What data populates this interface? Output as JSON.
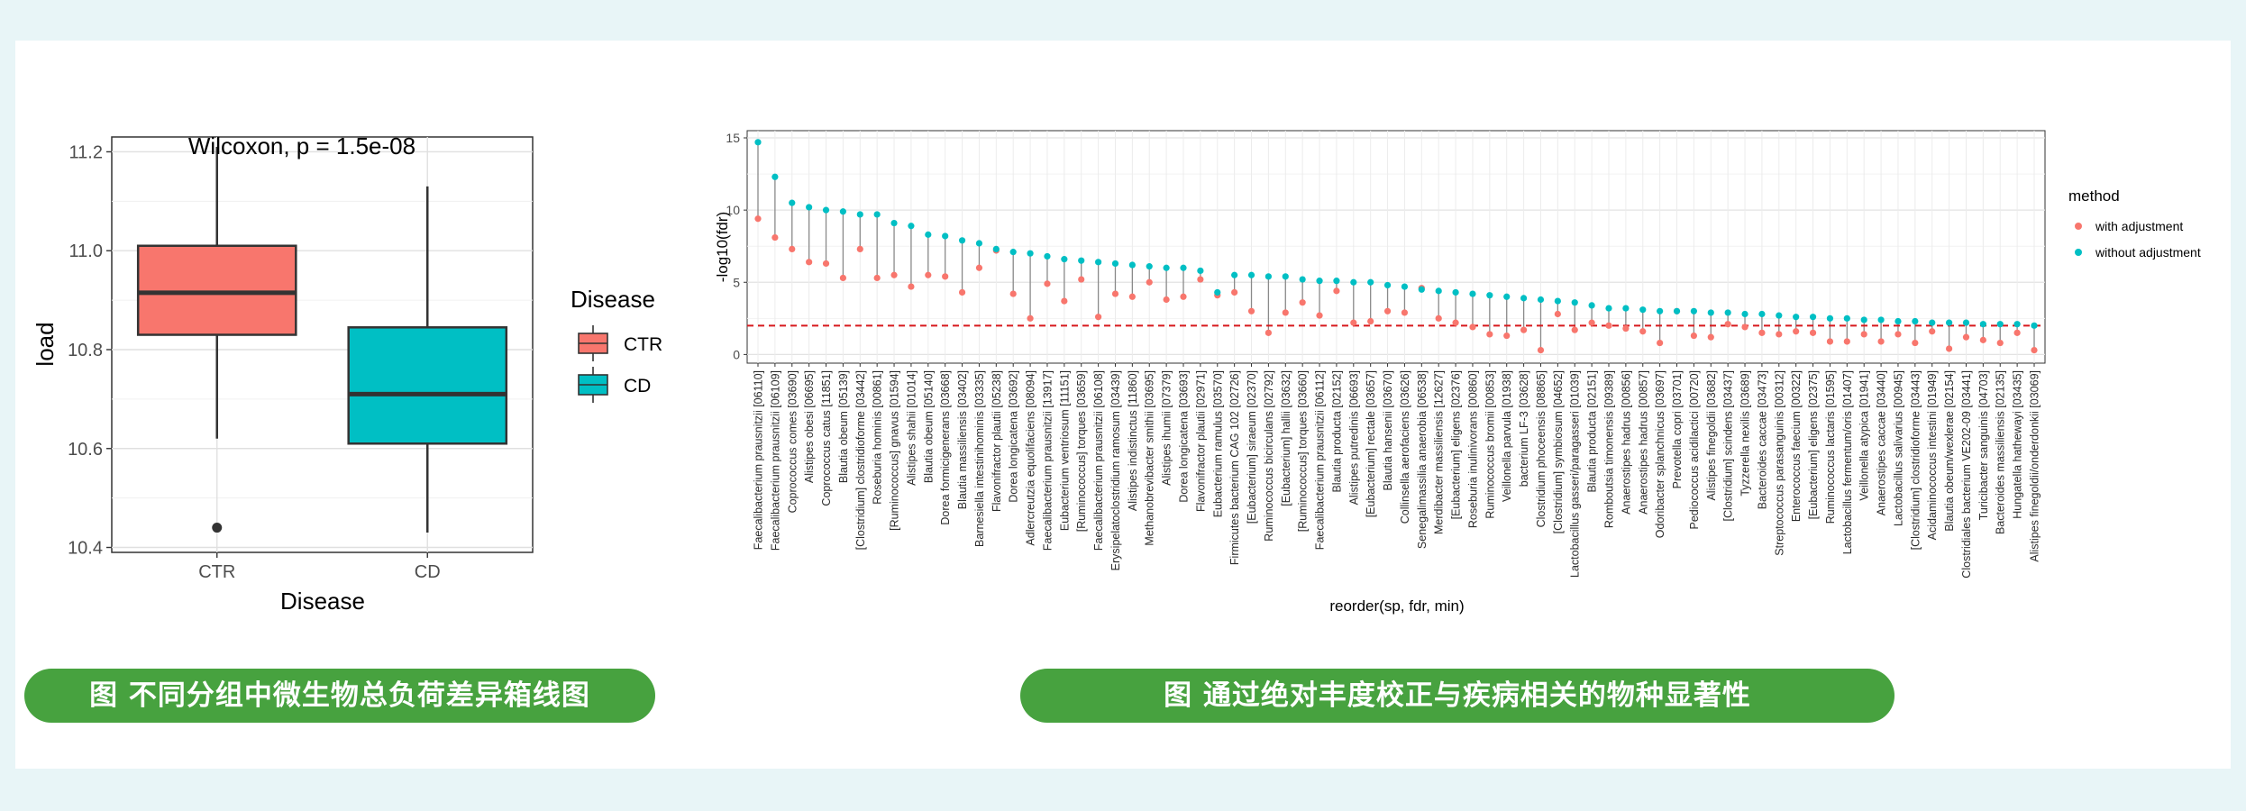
{
  "captions": {
    "left": "图 不同分组中微生物总负荷差异箱线图",
    "right": "图 通过绝对丰度校正与疾病相关的物种显著性"
  },
  "colors": {
    "ctr": "#f8766d",
    "cd": "#00bfc4",
    "caption_bg": "#47a23f",
    "threshold": "#d7191c"
  },
  "chart_data": [
    {
      "type": "box",
      "title": "Wilcoxon, p = 1.5e-08",
      "xlabel": "Disease",
      "ylabel": "load",
      "ylim": [
        10.39,
        11.23
      ],
      "yticks": [
        "10.4",
        "10.6",
        "10.8",
        "11.0",
        "11.2"
      ],
      "legend": {
        "title": "Disease",
        "position": "right"
      },
      "grid": true,
      "groups": [
        {
          "name": "CTR",
          "min": 10.62,
          "q1": 10.83,
          "median": 10.915,
          "q3": 11.01,
          "max": 11.21,
          "outliers": [
            10.44
          ]
        },
        {
          "name": "CD",
          "min": 10.43,
          "q1": 10.61,
          "median": 10.71,
          "q3": 10.845,
          "max": 11.13,
          "outliers": []
        }
      ]
    },
    {
      "type": "scatter",
      "xlabel": "reorder(sp, fdr, min)",
      "ylabel": "-log10(fdr)",
      "ylim": [
        -0.6,
        15.5
      ],
      "yticks": [
        "0",
        "5",
        "10",
        "15"
      ],
      "hline": 2,
      "grid": true,
      "legend": {
        "title": "method",
        "position": "right"
      },
      "series": [
        {
          "name": "with adjustment",
          "color": "#f8766d"
        },
        {
          "name": "without adjustment",
          "color": "#00bfc4"
        }
      ],
      "categories": [
        "Faecalibacterium prausnitzii [06110]",
        "Faecalibacterium prausnitzii [06109]",
        "Coprococcus comes [03690]",
        "Alistipes obesi [06695]",
        "Coprococcus catus [11851]",
        "Blautia obeum [05139]",
        "[Clostridium] clostridioforme [03442]",
        "Roseburia hominis [00861]",
        "[Ruminococcus] gnavus [01594]",
        "Alistipes shahii [01014]",
        "Blautia obeum [05140]",
        "Dorea formicigenerans [03668]",
        "Blautia massiliensis [03402]",
        "Barnesiella intestinihominis [03335]",
        "Flavonifractor plautii [05238]",
        "Dorea longicatena [03692]",
        "Adlercreutzia equolifaciens [08094]",
        "Faecalibacterium prausnitzii [13917]",
        "Eubacterium ventriosum [11151]",
        "[Ruminococcus] torques [03659]",
        "Faecalibacterium prausnitzii [06108]",
        "Erysipelatoclostridium ramosum [03439]",
        "Alistipes indistinctus [11860]",
        "Methanobrevibacter smithii [03695]",
        "Alistipes ihumii [07379]",
        "Dorea longicatena [03693]",
        "Flavonifractor plautii [02971]",
        "Eubacterium ramulus [03570]",
        "Firmicutes bacterium CAG 102 [02726]",
        "[Eubacterium] siraeum [02370]",
        "Ruminococcus bicirculans [02792]",
        "[Eubacterium] hallii [03632]",
        "[Ruminococcus] torques [03660]",
        "Faecalibacterium prausnitzii [06112]",
        "Blautia producta [02152]",
        "Alistipes putredinis [06693]",
        "[Eubacterium] rectale [03657]",
        "Blautia hansenii [03670]",
        "Collinsella aerofaciens [03626]",
        "Senegalimassilia anaerobia [06538]",
        "Merdibacter massiliensis [12627]",
        "[Eubacterium] eligens [02376]",
        "Roseburia inulinivorans [00860]",
        "Ruminococcus bromii [00853]",
        "Veillonella parvula [01938]",
        "bacterium LF-3 [03628]",
        "Clostridium phoceensis [08865]",
        "[Clostridium] symbiosum [04652]",
        "Lactobacillus gasseri/paragasseri [01039]",
        "Blautia producta [02151]",
        "Romboutsia timonensis [09389]",
        "Anaerostipes hadrus [00856]",
        "Anaerostipes hadrus [00857]",
        "Odoribacter splanchnicus [03697]",
        "Prevotella copri [03701]",
        "Pediococcus acidilactici [00720]",
        "Alistipes finegoldii [03682]",
        "[Clostridium] scindens [03437]",
        "Tyzzerella nexilis [03689]",
        "Bacteroides caccae [03473]",
        "Streptococcus parasanguinis [00312]",
        "Enterococcus faecium [00322]",
        "[Eubacterium] eligens [02375]",
        "Ruminococcus lactaris [01595]",
        "Lactobacillus fermentum/oris [01407]",
        "Veillonella atypica [01941]",
        "Anaerostipes caccae [03440]",
        "Lactobacillus salivarius [00945]",
        "[Clostridium] clostridioforme [03443]",
        "Acidaminococcus intestini [01949]",
        "Blautia obeum/wexlerae [02154]",
        "Clostridiales bacterium VE202-09 [03441]",
        "Turicibacter sanguinis [04703]",
        "Bacteroides massiliensis [02135]",
        "Hungatella hathewayi [03435]",
        "Alistipes finegoldii/onderdonkii [03069]"
      ],
      "with_adjustment": [
        9.4,
        8.1,
        7.3,
        6.4,
        6.3,
        5.3,
        7.3,
        5.3,
        5.5,
        4.7,
        5.5,
        5.4,
        4.3,
        6.0,
        7.2,
        4.2,
        2.5,
        4.9,
        3.7,
        5.2,
        2.6,
        4.2,
        4.0,
        5.0,
        3.8,
        4.0,
        5.2,
        4.1,
        4.3,
        3.0,
        1.5,
        2.9,
        3.6,
        2.7,
        4.4,
        2.2,
        2.3,
        3.0,
        2.9,
        4.6,
        2.5,
        2.2,
        1.9,
        1.4,
        1.3,
        1.7,
        0.3,
        2.8,
        1.7,
        2.2,
        2.0,
        1.8,
        1.6,
        0.8,
        3.0,
        1.3,
        1.2,
        2.1,
        1.9,
        1.5,
        1.4,
        1.6,
        1.5,
        0.9,
        0.9,
        1.4,
        0.9,
        1.4,
        0.8,
        1.6,
        0.4,
        1.2,
        1.0,
        0.8,
        1.5,
        0.3
      ],
      "without_adjustment": [
        14.7,
        12.3,
        10.5,
        10.2,
        10.0,
        9.9,
        9.7,
        9.7,
        9.1,
        8.9,
        8.3,
        8.2,
        7.9,
        7.7,
        7.3,
        7.1,
        7.0,
        6.8,
        6.6,
        6.5,
        6.4,
        6.3,
        6.2,
        6.1,
        6.0,
        6.0,
        5.8,
        4.3,
        5.5,
        5.5,
        5.4,
        5.4,
        5.2,
        5.1,
        5.1,
        5.0,
        5.0,
        4.8,
        4.7,
        4.5,
        4.4,
        4.3,
        4.2,
        4.1,
        4.0,
        3.9,
        3.8,
        3.7,
        3.6,
        3.4,
        3.2,
        3.2,
        3.1,
        3.0,
        3.0,
        3.0,
        2.9,
        2.9,
        2.8,
        2.8,
        2.7,
        2.6,
        2.6,
        2.5,
        2.5,
        2.4,
        2.4,
        2.3,
        2.3,
        2.2,
        2.2,
        2.2,
        2.1,
        2.1,
        2.1,
        2.0
      ]
    }
  ]
}
